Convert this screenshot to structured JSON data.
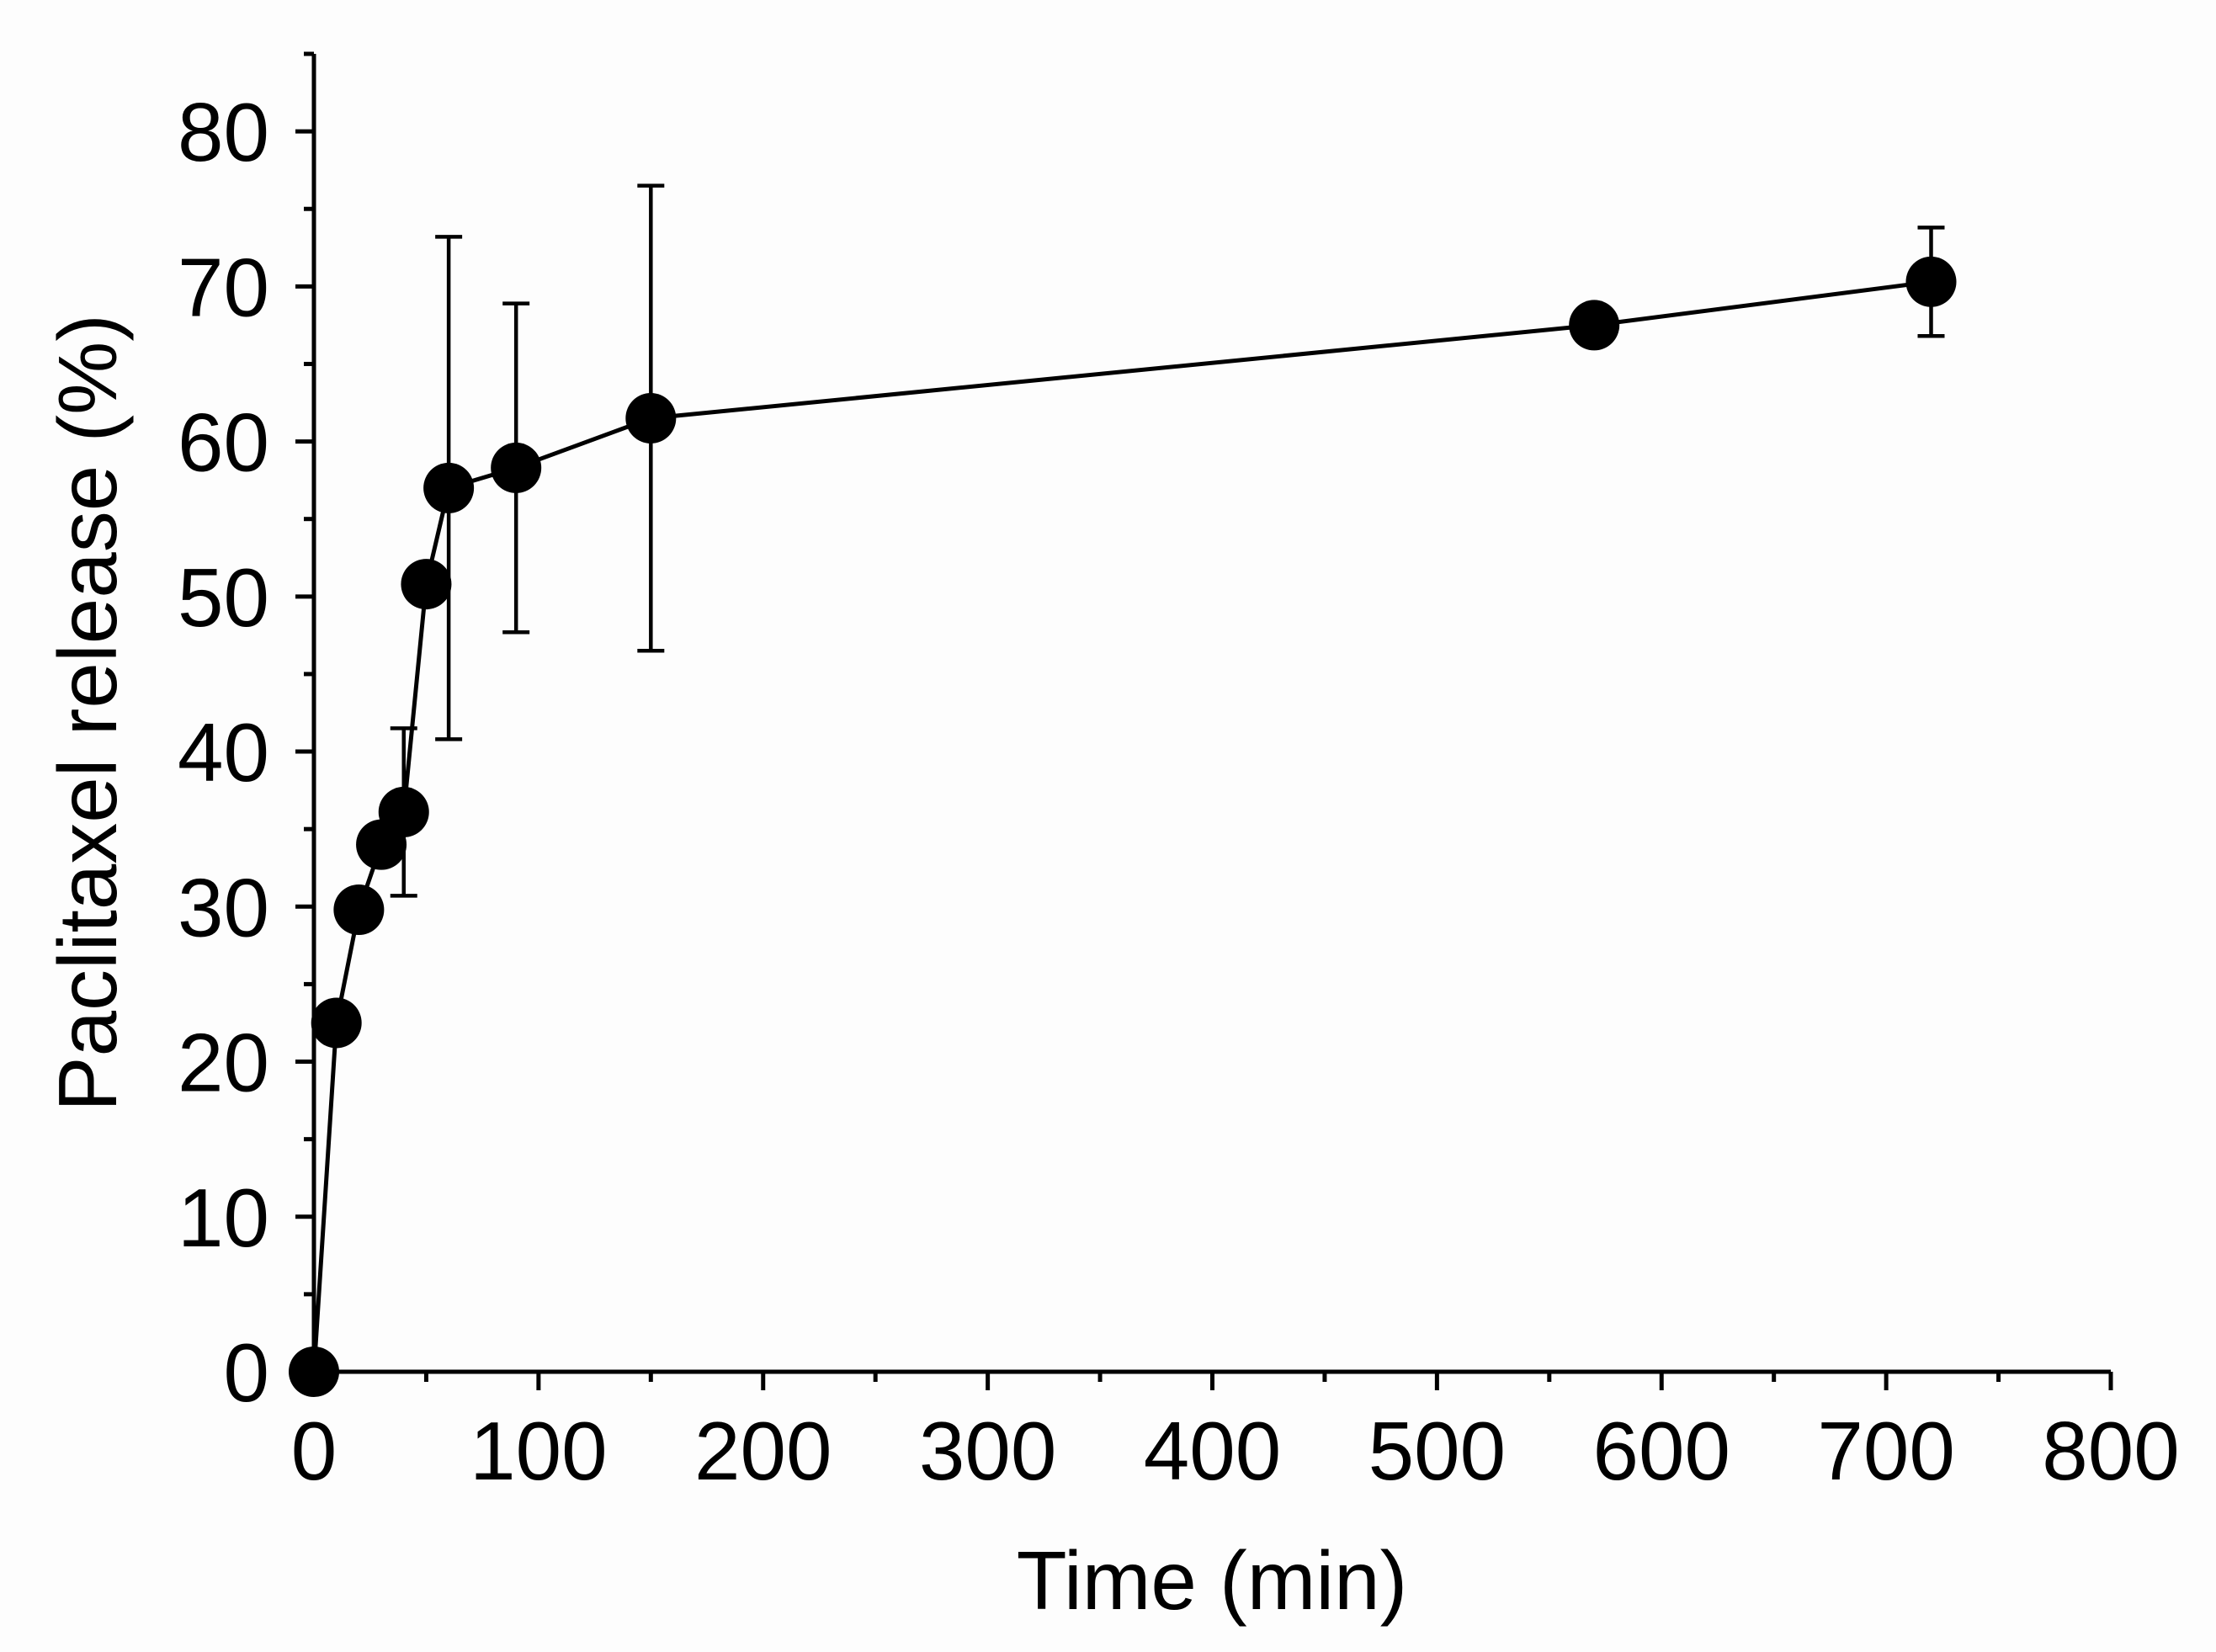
{
  "chart_data": {
    "type": "line",
    "title": "",
    "xlabel": "Time (min)",
    "ylabel": "Paclitaxel release (%)",
    "xlim": [
      0,
      800
    ],
    "ylim": [
      0,
      85
    ],
    "xticks": [
      0,
      100,
      200,
      300,
      400,
      500,
      600,
      700,
      800
    ],
    "yticks": [
      0,
      10,
      20,
      30,
      40,
      50,
      60,
      70,
      80
    ],
    "x_tick_labels": [
      "0",
      "100",
      "200",
      "300",
      "400",
      "500",
      "600",
      "700",
      "800"
    ],
    "y_tick_labels": [
      "0",
      "10",
      "20",
      "30",
      "40",
      "50",
      "60",
      "70",
      "80"
    ],
    "grid": false,
    "legend": null,
    "series": [
      {
        "name": "Paclitaxel release",
        "marker": "filled-circle",
        "color": "#000000",
        "points": [
          {
            "x": 0,
            "y": 0,
            "err": 0
          },
          {
            "x": 10,
            "y": 22.5,
            "err": 0
          },
          {
            "x": 20,
            "y": 29.8,
            "err": 0
          },
          {
            "x": 30,
            "y": 34.0,
            "err": 0
          },
          {
            "x": 40,
            "y": 36.1,
            "err": 5.4
          },
          {
            "x": 50,
            "y": 50.8,
            "err": 0
          },
          {
            "x": 60,
            "y": 57.0,
            "err": 16.2
          },
          {
            "x": 90,
            "y": 58.3,
            "err": 10.6
          },
          {
            "x": 150,
            "y": 61.5,
            "err": 15.0
          },
          {
            "x": 570,
            "y": 67.5,
            "err": 0
          },
          {
            "x": 720,
            "y": 70.3,
            "err": 3.5
          }
        ]
      }
    ]
  }
}
